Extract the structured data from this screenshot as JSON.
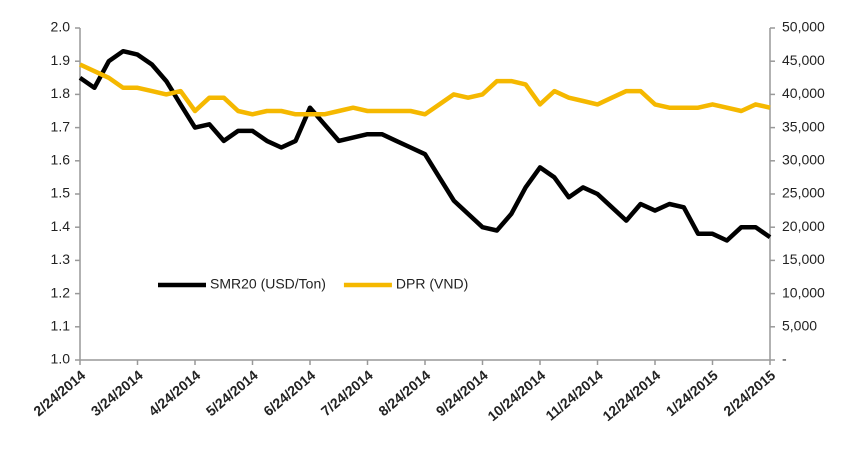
{
  "chart_data": {
    "type": "line",
    "categories": [
      "2/24/2014",
      null,
      null,
      null,
      "3/24/2014",
      null,
      null,
      null,
      "4/24/2014",
      null,
      null,
      null,
      "5/24/2014",
      null,
      null,
      null,
      "6/24/2014",
      null,
      null,
      null,
      "7/24/2014",
      null,
      null,
      null,
      "8/24/2014",
      null,
      null,
      null,
      "9/24/2014",
      null,
      null,
      null,
      "10/24/2014",
      null,
      null,
      null,
      "11/24/2014",
      null,
      null,
      null,
      "12/24/2014",
      null,
      null,
      null,
      "1/24/2015",
      null,
      null,
      null,
      "2/24/2015"
    ],
    "series": [
      {
        "name": "SMR20 (USD/Ton)",
        "color": "#000000",
        "axis": "y",
        "values": [
          1.85,
          1.82,
          1.9,
          1.93,
          1.92,
          1.89,
          1.84,
          1.77,
          1.7,
          1.71,
          1.66,
          1.69,
          1.69,
          1.66,
          1.64,
          1.66,
          1.76,
          1.71,
          1.66,
          1.67,
          1.68,
          1.68,
          1.66,
          1.64,
          1.62,
          1.55,
          1.48,
          1.44,
          1.4,
          1.39,
          1.44,
          1.52,
          1.58,
          1.55,
          1.49,
          1.52,
          1.5,
          1.46,
          1.42,
          1.47,
          1.45,
          1.47,
          1.46,
          1.38,
          1.38,
          1.36,
          1.4,
          1.4,
          1.37
        ]
      },
      {
        "name": "DPR (VND)",
        "color": "#f5b800",
        "axis": "y2",
        "values": [
          44500,
          43500,
          42500,
          41000,
          41000,
          40500,
          40000,
          40500,
          37500,
          39500,
          39500,
          37500,
          37000,
          37500,
          37500,
          37000,
          37000,
          37000,
          37500,
          38000,
          37500,
          37500,
          37500,
          37500,
          37000,
          38500,
          40000,
          39500,
          40000,
          42000,
          42000,
          41500,
          38500,
          40500,
          39500,
          39000,
          38500,
          39500,
          40500,
          40500,
          38500,
          38000,
          38000,
          38000,
          38500,
          38000,
          37500,
          38500,
          38000
        ]
      }
    ],
    "ylim": [
      1.0,
      2.0
    ],
    "yticks": [
      {
        "value": 1.0,
        "label": "1.0"
      },
      1.1,
      1.2,
      1.3,
      1.4,
      1.5,
      1.6,
      1.7,
      1.8,
      1.9,
      {
        "value": 2.0,
        "label": "2.0"
      }
    ],
    "y2lim": [
      0,
      50000
    ],
    "y2ticks": [
      {
        "value": 0,
        "label": "-"
      },
      {
        "value": 5000,
        "label": "5,000"
      },
      {
        "value": 10000,
        "label": "10,000"
      },
      {
        "value": 15000,
        "label": "15,000"
      },
      {
        "value": 20000,
        "label": "20,000"
      },
      {
        "value": 25000,
        "label": "25,000"
      },
      {
        "value": 30000,
        "label": "30,000"
      },
      {
        "value": 35000,
        "label": "35,000"
      },
      {
        "value": 40000,
        "label": "40,000"
      },
      {
        "value": 45000,
        "label": "45,000"
      },
      {
        "value": 50000,
        "label": "50,000"
      }
    ],
    "legend": "lower center"
  }
}
